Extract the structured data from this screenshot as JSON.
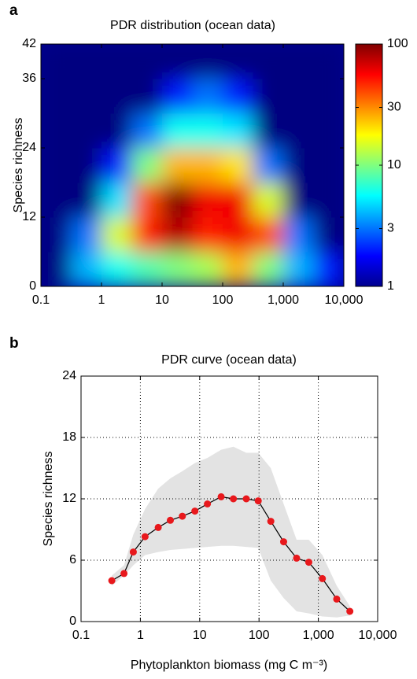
{
  "chart_data": [
    {
      "type": "heatmap",
      "panel_label": "a",
      "title": "PDR distribution (ocean data)",
      "ylabel": "Species richness",
      "xlog": true,
      "xlim": [
        0.1,
        10000
      ],
      "xticks": [
        0.1,
        1,
        10,
        100,
        {
          "value": 1000,
          "label": "1,000"
        },
        {
          "value": 10000,
          "label": "10,000"
        }
      ],
      "ylim": [
        0,
        42
      ],
      "yticks": [
        0,
        12,
        24,
        36,
        42
      ],
      "x_bins": [
        0.1,
        0.316,
        1,
        3.16,
        10,
        31.6,
        100,
        316,
        1000,
        3160,
        10000
      ],
      "y_bins": [
        0,
        6,
        12,
        18,
        24,
        30,
        36,
        42
      ],
      "z": [
        [
          1,
          4,
          6,
          8,
          10,
          12,
          25,
          10,
          4,
          2
        ],
        [
          1,
          3,
          15,
          50,
          80,
          50,
          60,
          40,
          3,
          1
        ],
        [
          1,
          1,
          5,
          40,
          100,
          60,
          60,
          15,
          1,
          1
        ],
        [
          1,
          1,
          2,
          10,
          25,
          25,
          20,
          3,
          1,
          1
        ],
        [
          1,
          1,
          1,
          3,
          6,
          6,
          5,
          1,
          1,
          1
        ],
        [
          1,
          1,
          1,
          1,
          2,
          3,
          2,
          1,
          1,
          1
        ],
        [
          1,
          1,
          1,
          1,
          1,
          1,
          1,
          1,
          1,
          1
        ]
      ],
      "colorbar": {
        "log": true,
        "lim": [
          1,
          100
        ],
        "ticks": [
          1,
          3,
          10,
          30,
          100
        ],
        "colormap": "jet"
      }
    },
    {
      "type": "line",
      "panel_label": "b",
      "title": "PDR curve (ocean data)",
      "xlabel": "Phytoplankton biomass (mg C m⁻³)",
      "ylabel": "Species richness",
      "xlog": true,
      "grid": true,
      "xlim": [
        0.1,
        10000
      ],
      "xticks": [
        0.1,
        1,
        10,
        100,
        {
          "value": 1000,
          "label": "1,000"
        },
        {
          "value": 10000,
          "label": "10,000"
        }
      ],
      "ylim": [
        0,
        24
      ],
      "yticks": [
        0,
        6,
        12,
        18,
        24
      ],
      "x": [
        0.33,
        0.53,
        0.76,
        1.2,
        2,
        3.2,
        5.1,
        8.3,
        13.5,
        23,
        37,
        61,
        97,
        158,
        260,
        430,
        690,
        1170,
        2040,
        3400
      ],
      "series": [
        {
          "color": "#e8181c",
          "values": [
            4.0,
            4.7,
            6.8,
            8.3,
            9.2,
            9.9,
            10.3,
            10.8,
            11.5,
            12.2,
            12.0,
            12.0,
            11.8,
            9.8,
            7.8,
            6.2,
            5.8,
            4.2,
            2.2,
            1.0
          ],
          "band_color": "#e3e3e3",
          "band_lower": [
            3.5,
            4.5,
            5.5,
            6.5,
            6.8,
            7.0,
            7.1,
            7.2,
            7.3,
            7.4,
            7.4,
            7.3,
            7.2,
            4.0,
            2.3,
            1.0,
            0.8,
            0.5,
            0.4,
            0.6
          ],
          "band_upper": [
            4.5,
            5.5,
            8.5,
            11.0,
            13.0,
            14.0,
            14.7,
            15.5,
            16.0,
            16.8,
            17.1,
            16.5,
            16.5,
            15.0,
            11.5,
            8.0,
            8.0,
            6.5,
            3.5,
            1.5
          ]
        }
      ]
    }
  ]
}
